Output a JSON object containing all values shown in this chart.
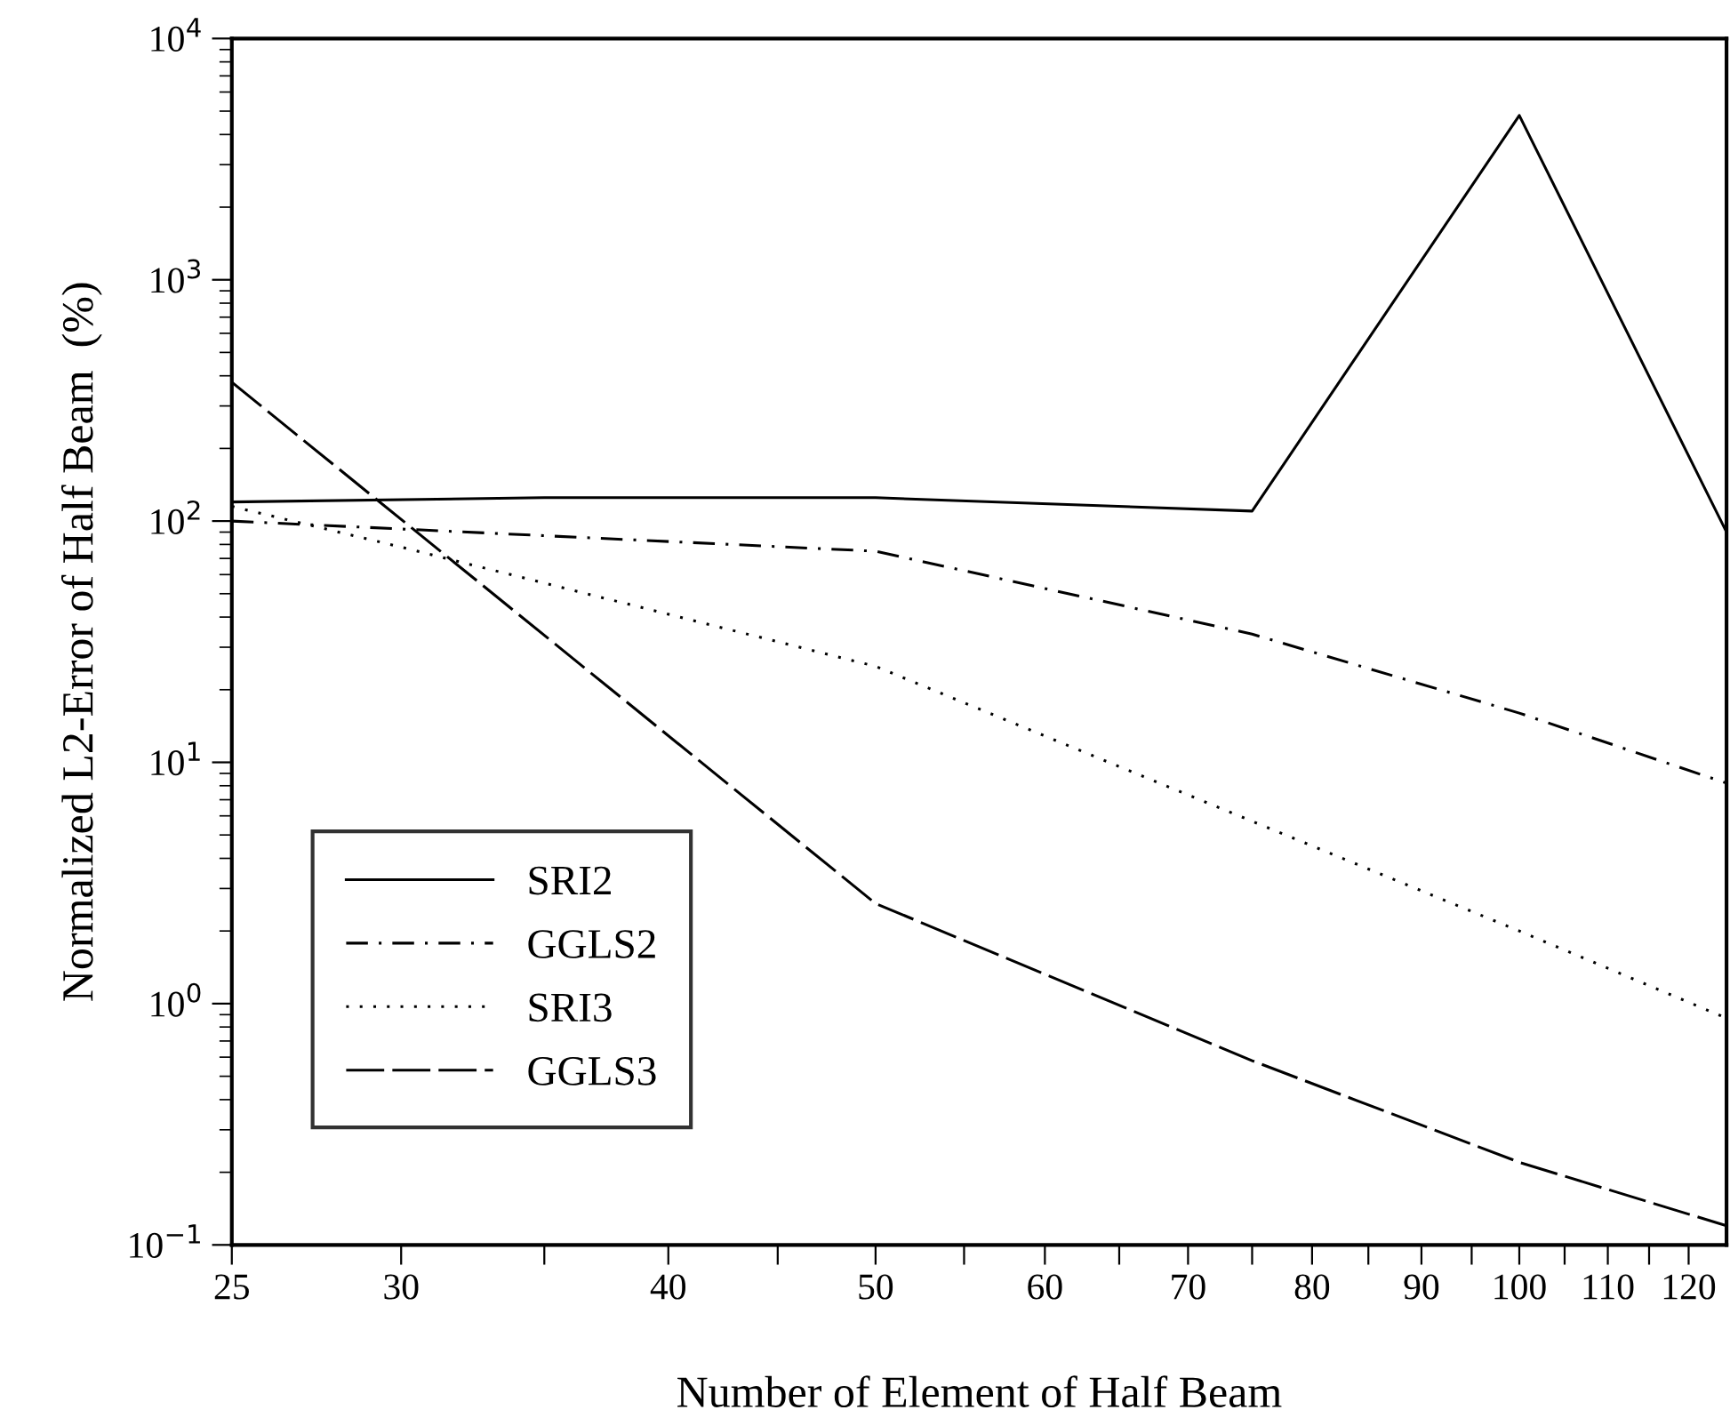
{
  "chart_data": {
    "type": "line",
    "xlabel": "Number of Element of Half Beam",
    "ylabel": "Normalized L2-Error of Half Beam  (%)",
    "log": "xy",
    "xlim": [
      25,
      125
    ],
    "ylim": [
      0.1,
      10000
    ],
    "xticks": [
      25,
      30,
      {
        "value": 35,
        "label": null
      },
      40,
      {
        "value": 45,
        "label": null
      },
      50,
      {
        "value": 55,
        "label": null
      },
      60,
      {
        "value": 65,
        "label": null
      },
      70,
      {
        "value": 75,
        "label": null
      },
      80,
      {
        "value": 85,
        "label": null
      },
      90,
      {
        "value": 95,
        "label": null
      },
      100,
      {
        "value": 105,
        "label": null
      },
      110,
      {
        "value": 115,
        "label": null
      },
      120
    ],
    "yticks": [
      {
        "value": 0.1,
        "label": "10$^{−1}$"
      },
      {
        "value": 1,
        "label": "10$^{0}$"
      },
      {
        "value": 10,
        "label": "10$^{1}$"
      },
      {
        "value": 100,
        "label": "10$^{2}$"
      },
      {
        "value": 1000,
        "label": "10$^{3}$"
      },
      {
        "value": 10000,
        "label": "10$^{4}$"
      }
    ],
    "grid": false,
    "legend": "bottom left",
    "marker": "none",
    "series": [
      {
        "name": "SRI2",
        "color": "#000000",
        "line_style": "solid",
        "x": [
          25,
          35,
          50,
          75,
          100,
          125
        ],
        "values": [
          120,
          125,
          125,
          110,
          4800,
          90
        ]
      },
      {
        "name": "GGLS2",
        "color": "#000000",
        "line_style": "dashdot",
        "x": [
          25,
          50,
          75,
          100,
          125
        ],
        "values": [
          100,
          75,
          34,
          16,
          8.2
        ]
      },
      {
        "name": "SRI3",
        "color": "#000000",
        "line_style": "dotted",
        "x": [
          25,
          30,
          50,
          75,
          100,
          125
        ],
        "values": [
          115,
          78,
          25,
          5.7,
          2.0,
          0.87
        ]
      },
      {
        "name": "GGLS3",
        "color": "#000000",
        "line_style": "longdash",
        "x": [
          25,
          50,
          75,
          100,
          125
        ],
        "values": [
          376,
          2.6,
          0.58,
          0.22,
          0.12
        ]
      }
    ]
  }
}
